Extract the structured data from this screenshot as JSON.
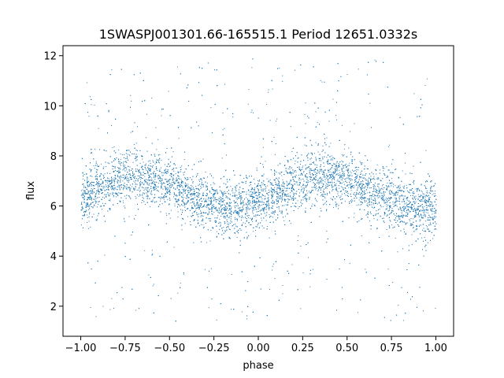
{
  "chart_data": {
    "type": "scatter",
    "title": "1SWASPJ001301.66-165515.1 Period 12651.0332s",
    "xlabel": "phase",
    "ylabel": "flux",
    "xlim": [
      -1.1,
      1.1
    ],
    "ylim": [
      0.8,
      12.4
    ],
    "xticks": [
      -1.0,
      -0.75,
      -0.5,
      -0.25,
      0.0,
      0.25,
      0.5,
      0.75,
      1.0
    ],
    "xtick_labels": [
      "−1.00",
      "−0.75",
      "−0.50",
      "−0.25",
      "0.00",
      "0.25",
      "0.50",
      "0.75",
      "1.00"
    ],
    "yticks": [
      2,
      4,
      6,
      8,
      10,
      12
    ],
    "ytick_labels": [
      "2",
      "4",
      "6",
      "8",
      "10",
      "12"
    ],
    "grid": false,
    "legend": "none",
    "series": [
      {
        "color": "#1f77b4",
        "x_range": [
          -1.0,
          1.0
        ],
        "trend": {
          "phase": [
            -1.0,
            -0.9,
            -0.8,
            -0.7,
            -0.6,
            -0.5,
            -0.4,
            -0.3,
            -0.2,
            -0.1,
            0.0,
            0.1,
            0.2,
            0.3,
            0.4,
            0.5,
            0.6,
            0.7,
            0.8,
            0.9,
            1.0
          ],
          "flux": [
            6.35,
            6.75,
            7.1,
            7.25,
            7.1,
            6.85,
            6.5,
            6.15,
            5.95,
            5.95,
            6.1,
            6.5,
            6.9,
            7.2,
            7.2,
            6.95,
            6.65,
            6.35,
            6.05,
            5.95,
            6.0
          ]
        },
        "core_spread": 1.1,
        "outlier_range": [
          1.4,
          11.9
        ]
      }
    ]
  }
}
